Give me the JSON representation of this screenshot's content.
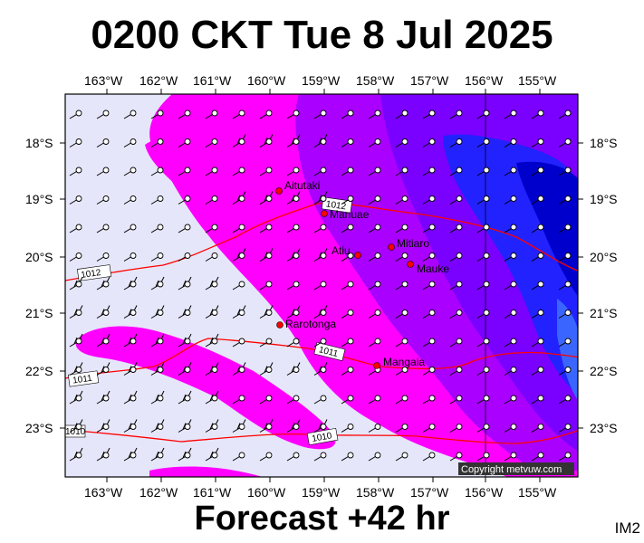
{
  "title": "0200 CKT Tue 8 Jul 2025",
  "forecast_label": "Forecast +42 hr",
  "product_code": "IM2",
  "copyright": "Copyright metvuw.com",
  "lon_labels": [
    "163°W",
    "162°W",
    "161°W",
    "160°W",
    "159°W",
    "158°W",
    "157°W",
    "156°W",
    "155°W"
  ],
  "lat_labels": [
    "18°S",
    "19°S",
    "20°S",
    "21°S",
    "22°S",
    "23°S"
  ],
  "places": [
    {
      "name": "Aitutaki"
    },
    {
      "name": "Manuae"
    },
    {
      "name": "Mitiaro"
    },
    {
      "name": "Atiu"
    },
    {
      "name": "Mauke"
    },
    {
      "name": "Rarotonga"
    },
    {
      "name": "Mangaia"
    }
  ],
  "isobars": [
    "1012",
    "1012",
    "1011",
    "1011",
    "1010",
    "1010"
  ],
  "colors": {
    "background_low": "#e6e6fa",
    "magenta": "#ff00ff",
    "violet": "#aa00ff",
    "purple": "#7a00ff",
    "blue": "#2222ff",
    "blue_dark": "#0000cc",
    "isobar": "#ff0000",
    "town": "#ff0000"
  }
}
